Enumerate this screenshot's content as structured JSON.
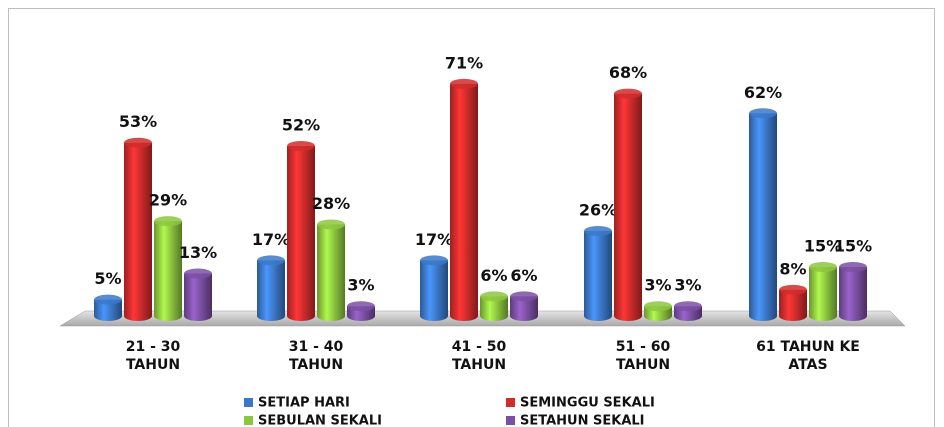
{
  "chart_data": {
    "type": "bar",
    "categories": [
      [
        "21 - 30",
        "TAHUN"
      ],
      [
        "31 - 40",
        "TAHUN"
      ],
      [
        "41 - 50",
        "TAHUN"
      ],
      [
        "51 - 60",
        "TAHUN"
      ],
      [
        "61 TAHUN KE",
        "ATAS"
      ]
    ],
    "series": [
      {
        "name": "SETIAP HARI",
        "color": "#3b78c9",
        "values": [
          5,
          17,
          17,
          26,
          62
        ],
        "value_labels": [
          "5%",
          "17%",
          "17%",
          "26%",
          "62%"
        ]
      },
      {
        "name": "SEMINGGU SEKALI",
        "color": "#d22b2b",
        "values": [
          53,
          52,
          71,
          68,
          8
        ],
        "value_labels": [
          "53%",
          "52%",
          "71%",
          "68%",
          "8%"
        ]
      },
      {
        "name": "SEBULAN SEKALI",
        "color": "#8dc63f",
        "values": [
          29,
          28,
          6,
          3,
          15
        ],
        "value_labels": [
          "29%",
          "28%",
          "6%",
          "3%",
          "15%"
        ]
      },
      {
        "name": "SETAHUN SEKALI",
        "color": "#7b4fa3",
        "values": [
          13,
          3,
          6,
          3,
          15
        ],
        "value_labels": [
          "13%",
          "3%",
          "6%",
          "3%",
          "15%"
        ]
      }
    ],
    "legend": "bottom"
  }
}
